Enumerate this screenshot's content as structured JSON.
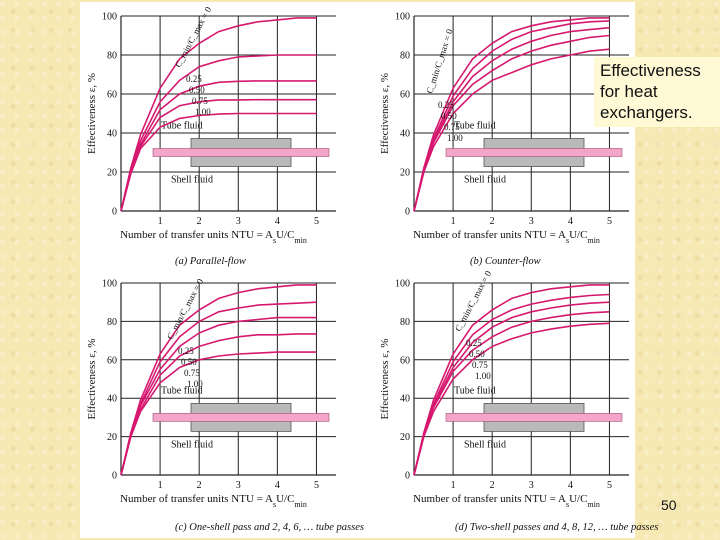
{
  "slide": {
    "title_text": "Effectiveness for heat exchangers.",
    "page_number": "50",
    "colors": {
      "curve": "#d6186f",
      "tube": "#f3a5cc",
      "shell": "#b9b9b9",
      "grid": "#222222",
      "background": "#f6e9b4"
    }
  },
  "chart_data": [
    {
      "type": "line",
      "xlabel": "Number of transfer units NTU = A",
      "xlabel_tail": "U/C",
      "xlabel_sub1": "s",
      "xlabel_sub2": "min",
      "ylabel": "Effectiveness ε, %",
      "xlim": [
        0,
        5.5
      ],
      "ylim": [
        0,
        100
      ],
      "xticks": [
        "1",
        "2",
        "3",
        "4",
        "5"
      ],
      "yticks": [
        "0",
        "20",
        "40",
        "60",
        "80",
        "100"
      ],
      "caption": "(a) Parallel-flow",
      "ratio_label": "C_min/C_max = 0",
      "series": [
        {
          "name": "0",
          "x": [
            0,
            0.25,
            0.5,
            1,
            1.5,
            2,
            2.5,
            3,
            3.5,
            4,
            4.5,
            5
          ],
          "y": [
            0,
            22,
            39,
            63,
            78,
            86,
            92,
            95,
            97,
            98,
            99,
            99
          ]
        },
        {
          "name": "0.25",
          "x": [
            0,
            0.25,
            0.5,
            1,
            1.5,
            2,
            2.5,
            3,
            3.5,
            4,
            4.5,
            5
          ],
          "y": [
            0,
            21,
            36,
            56,
            67,
            74,
            77,
            79,
            79.5,
            80,
            80,
            80
          ]
        },
        {
          "name": "0.50",
          "x": [
            0,
            0.25,
            0.5,
            1,
            1.5,
            2,
            2.5,
            3,
            3.5,
            4,
            4.5,
            5
          ],
          "y": [
            0,
            20,
            34,
            52,
            60,
            64,
            66,
            66.5,
            66.7,
            66.7,
            66.7,
            66.7
          ]
        },
        {
          "name": "0.75",
          "x": [
            0,
            0.25,
            0.5,
            1,
            1.5,
            2,
            2.5,
            3,
            3.5,
            4,
            4.5,
            5
          ],
          "y": [
            0,
            20,
            33,
            48,
            54,
            56,
            57,
            57,
            57.1,
            57.1,
            57.1,
            57.1
          ]
        },
        {
          "name": "1.00",
          "x": [
            0,
            0.25,
            0.5,
            1,
            1.5,
            2,
            2.5,
            3,
            3.5,
            4,
            4.5,
            5
          ],
          "y": [
            0,
            19,
            32,
            43,
            47.5,
            49,
            49.7,
            50,
            50,
            50,
            50,
            50
          ]
        }
      ],
      "labels": {
        "tube_fluid": "Tube fluid",
        "shell_fluid": "Shell fluid"
      }
    },
    {
      "type": "line",
      "xlabel": "Number of transfer units NTU = A",
      "xlabel_tail": "U/C",
      "xlabel_sub1": "s",
      "xlabel_sub2": "min",
      "ylabel": "Effectiveness ε, %",
      "xlim": [
        0,
        5.5
      ],
      "ylim": [
        0,
        100
      ],
      "xticks": [
        "1",
        "2",
        "3",
        "4",
        "5"
      ],
      "yticks": [
        "0",
        "20",
        "40",
        "60",
        "80",
        "100"
      ],
      "caption": "(b) Counter-flow",
      "ratio_label": "C_min/C_max = 0",
      "series": [
        {
          "name": "0",
          "x": [
            0,
            0.25,
            0.5,
            1,
            1.5,
            2,
            2.5,
            3,
            3.5,
            4,
            4.5,
            5
          ],
          "y": [
            0,
            22,
            39,
            63,
            78,
            86,
            92,
            95,
            97,
            98,
            99,
            99
          ]
        },
        {
          "name": "0.25",
          "x": [
            0,
            0.25,
            0.5,
            1,
            1.5,
            2,
            2.5,
            3,
            3.5,
            4,
            4.5,
            5
          ],
          "y": [
            0,
            21,
            37,
            59,
            73,
            82,
            88,
            92,
            94,
            96,
            97,
            97.5
          ]
        },
        {
          "name": "0.50",
          "x": [
            0,
            0.25,
            0.5,
            1,
            1.5,
            2,
            2.5,
            3,
            3.5,
            4,
            4.5,
            5
          ],
          "y": [
            0,
            21,
            36,
            56,
            69,
            77,
            83,
            87,
            90,
            92,
            93,
            94
          ]
        },
        {
          "name": "0.75",
          "x": [
            0,
            0.25,
            0.5,
            1,
            1.5,
            2,
            2.5,
            3,
            3.5,
            4,
            4.5,
            5
          ],
          "y": [
            0,
            20,
            35,
            54,
            65,
            72,
            78,
            82,
            85,
            87,
            89,
            90
          ]
        },
        {
          "name": "1.00",
          "x": [
            0,
            0.25,
            0.5,
            1,
            1.5,
            2,
            2.5,
            3,
            3.5,
            4,
            4.5,
            5
          ],
          "y": [
            0,
            20,
            33,
            50,
            60,
            67,
            71,
            75,
            78,
            80,
            82,
            83
          ]
        }
      ],
      "labels": {
        "tube_fluid": "Tube fluid",
        "shell_fluid": "Shell fluid"
      }
    },
    {
      "type": "line",
      "xlabel": "Number of transfer units NTU = A",
      "xlabel_tail": "U/C",
      "xlabel_sub1": "s",
      "xlabel_sub2": "min",
      "ylabel": "Effectiveness ε, %",
      "xlim": [
        0,
        5.5
      ],
      "ylim": [
        0,
        100
      ],
      "xticks": [
        "1",
        "2",
        "3",
        "4",
        "5"
      ],
      "yticks": [
        "0",
        "20",
        "40",
        "60",
        "80",
        "100"
      ],
      "caption": "(c) One-shell pass and 2, 4, 6, … tube passes",
      "ratio_label": "C_min/C_max = 0",
      "series": [
        {
          "name": "0",
          "x": [
            0,
            0.25,
            0.5,
            1,
            1.5,
            2,
            2.5,
            3,
            3.5,
            4,
            4.5,
            5
          ],
          "y": [
            0,
            22,
            39,
            63,
            78,
            86,
            92,
            95,
            97,
            98,
            99,
            99
          ]
        },
        {
          "name": "0.25",
          "x": [
            0,
            0.25,
            0.5,
            1,
            1.5,
            2,
            2.5,
            3,
            3.5,
            4,
            4.5,
            5
          ],
          "y": [
            0,
            21,
            37,
            59,
            72,
            80,
            85,
            87,
            88.5,
            89,
            89.5,
            90
          ]
        },
        {
          "name": "0.50",
          "x": [
            0,
            0.25,
            0.5,
            1,
            1.5,
            2,
            2.5,
            3,
            3.5,
            4,
            4.5,
            5
          ],
          "y": [
            0,
            21,
            36,
            55,
            67,
            74,
            78,
            80,
            81,
            82,
            82,
            82
          ]
        },
        {
          "name": "0.75",
          "x": [
            0,
            0.25,
            0.5,
            1,
            1.5,
            2,
            2.5,
            3,
            3.5,
            4,
            4.5,
            5
          ],
          "y": [
            0,
            20,
            34,
            52,
            62,
            67,
            70,
            72,
            73,
            73,
            73.5,
            73.5
          ]
        },
        {
          "name": "1.00",
          "x": [
            0,
            0.25,
            0.5,
            1,
            1.5,
            2,
            2.5,
            3,
            3.5,
            4,
            4.5,
            5
          ],
          "y": [
            0,
            20,
            33,
            48,
            56,
            60,
            62,
            63,
            63.5,
            64,
            64,
            64
          ]
        }
      ],
      "labels": {
        "tube_fluid": "Tube fluid",
        "shell_fluid": "Shell fluid"
      }
    },
    {
      "type": "line",
      "xlabel": "Number of transfer units NTU = A",
      "xlabel_tail": "U/C",
      "xlabel_sub1": "s",
      "xlabel_sub2": "min",
      "ylabel": "Effectiveness ε, %",
      "xlim": [
        0,
        5.5
      ],
      "ylim": [
        0,
        100
      ],
      "xticks": [
        "1",
        "2",
        "3",
        "4",
        "5"
      ],
      "yticks": [
        "0",
        "20",
        "40",
        "60",
        "80",
        "100"
      ],
      "caption": "(d) Two-shell passes and 4, 8, 12, … tube passes",
      "ratio_label": "C_min/C_max = 0",
      "series": [
        {
          "name": "0",
          "x": [
            0,
            0.25,
            0.5,
            1,
            1.5,
            2,
            2.5,
            3,
            3.5,
            4,
            4.5,
            5
          ],
          "y": [
            0,
            22,
            39,
            63,
            78,
            86,
            92,
            95,
            97,
            98,
            99,
            99
          ]
        },
        {
          "name": "0.25",
          "x": [
            0,
            0.25,
            0.5,
            1,
            1.5,
            2,
            2.5,
            3,
            3.5,
            4,
            4.5,
            5
          ],
          "y": [
            0,
            21,
            37,
            59,
            73,
            81,
            86,
            89,
            91,
            92.5,
            93.5,
            94
          ]
        },
        {
          "name": "0.50",
          "x": [
            0,
            0.25,
            0.5,
            1,
            1.5,
            2,
            2.5,
            3,
            3.5,
            4,
            4.5,
            5
          ],
          "y": [
            0,
            21,
            36,
            56,
            69,
            77,
            82,
            85,
            87,
            88.5,
            89.5,
            90
          ]
        },
        {
          "name": "0.75",
          "x": [
            0,
            0.25,
            0.5,
            1,
            1.5,
            2,
            2.5,
            3,
            3.5,
            4,
            4.5,
            5
          ],
          "y": [
            0,
            20,
            35,
            54,
            65,
            72,
            77,
            80,
            82,
            83.5,
            84.5,
            85
          ]
        },
        {
          "name": "1.00",
          "x": [
            0,
            0.25,
            0.5,
            1,
            1.5,
            2,
            2.5,
            3,
            3.5,
            4,
            4.5,
            5
          ],
          "y": [
            0,
            20,
            33,
            50,
            60,
            67,
            71,
            74,
            76,
            77.5,
            78.5,
            79
          ]
        }
      ],
      "labels": {
        "tube_fluid": "Tube fluid",
        "shell_fluid": "Shell fluid"
      }
    }
  ]
}
